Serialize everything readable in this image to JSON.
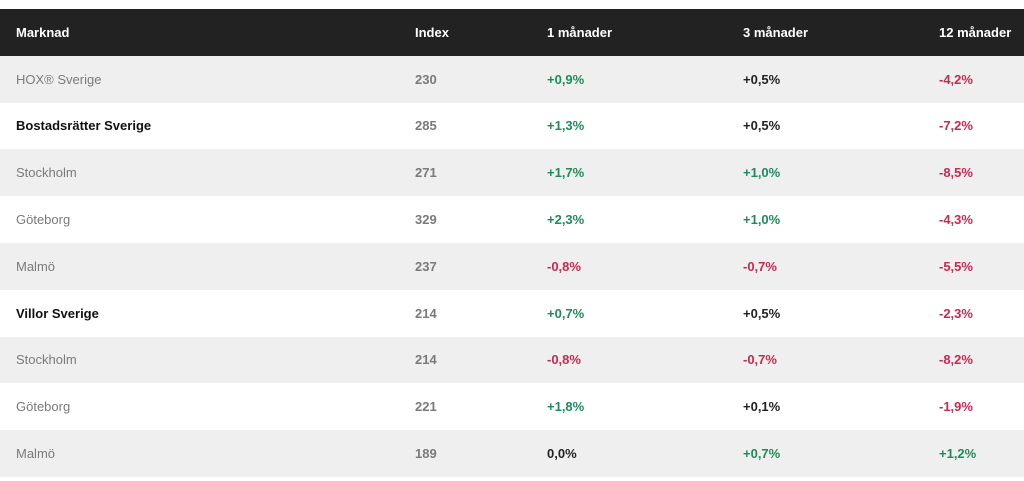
{
  "columns": {
    "market": "Marknad",
    "index": "Index",
    "m1": "1 månader",
    "m3": "3 månader",
    "m12": "12 månader"
  },
  "rows": [
    {
      "name": "HOX® Sverige",
      "bold": false,
      "index": "230",
      "m1": "+0,9%",
      "m3": "+0,5%",
      "m12": "-4,2%"
    },
    {
      "name": "Bostadsrätter Sverige",
      "bold": true,
      "index": "285",
      "m1": "+1,3%",
      "m3": "+0,5%",
      "m12": "-7,2%"
    },
    {
      "name": "Stockholm",
      "bold": false,
      "index": "271",
      "m1": "+1,7%",
      "m3": "+1,0%",
      "m12": "-8,5%"
    },
    {
      "name": "Göteborg",
      "bold": false,
      "index": "329",
      "m1": "+2,3%",
      "m3": "+1,0%",
      "m12": "-4,3%"
    },
    {
      "name": "Malmö",
      "bold": false,
      "index": "237",
      "m1": "-0,8%",
      "m3": "-0,7%",
      "m12": "-5,5%"
    },
    {
      "name": "Villor Sverige",
      "bold": true,
      "index": "214",
      "m1": "+0,7%",
      "m3": "+0,5%",
      "m12": "-2,3%"
    },
    {
      "name": "Stockholm",
      "bold": false,
      "index": "214",
      "m1": "-0,8%",
      "m3": "-0,7%",
      "m12": "-8,2%"
    },
    {
      "name": "Göteborg",
      "bold": false,
      "index": "221",
      "m1": "+1,8%",
      "m3": "+0,1%",
      "m12": "-1,9%"
    },
    {
      "name": "Malmö",
      "bold": false,
      "index": "189",
      "m1": "0,0%",
      "m3": "+0,7%",
      "m12": "+1,2%"
    }
  ],
  "colors": {
    "header_bg": "#222222",
    "row_shade": "#efefef",
    "positive": "#1e8c5a",
    "negative": "#c8294f",
    "neutral": "#222222"
  }
}
